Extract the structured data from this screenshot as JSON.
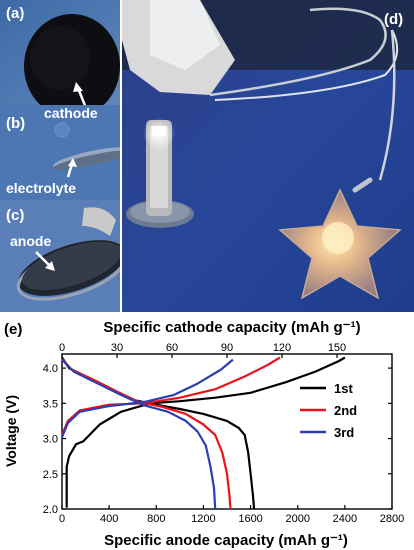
{
  "photo_panels": {
    "a": {
      "label": "(a)",
      "annotation": "cathode"
    },
    "b": {
      "label": "(b)",
      "annotation": "electrolyte"
    },
    "c": {
      "label": "(c)",
      "annotation": "anode"
    },
    "d": {
      "label": "(d)"
    }
  },
  "chart_data": {
    "type": "line",
    "panel_label": "(e)",
    "title": "",
    "xlabel_top": "Specific cathode capacity (mAh g⁻¹)",
    "xlabel_bottom": "Specific anode capacity (mAh g⁻¹)",
    "ylabel": "Voltage (V)",
    "xlim_bottom": [
      0,
      2800
    ],
    "xticks_bottom": [
      0,
      400,
      800,
      1200,
      1600,
      2000,
      2400,
      2800
    ],
    "xlim_top": [
      0,
      180
    ],
    "xticks_top": [
      0,
      30,
      60,
      90,
      120,
      150
    ],
    "ylim": [
      2.0,
      4.2
    ],
    "yticks": [
      2.0,
      2.5,
      3.0,
      3.5,
      4.0
    ],
    "legend_position": "right",
    "series": [
      {
        "name": "1st",
        "color": "#000000",
        "charge": [
          [
            40,
            2.02
          ],
          [
            40,
            2.6
          ],
          [
            60,
            2.75
          ],
          [
            120,
            2.92
          ],
          [
            180,
            2.96
          ],
          [
            320,
            3.2
          ],
          [
            500,
            3.38
          ],
          [
            750,
            3.5
          ],
          [
            1000,
            3.53
          ],
          [
            1300,
            3.58
          ],
          [
            1600,
            3.65
          ],
          [
            1900,
            3.8
          ],
          [
            2150,
            3.95
          ],
          [
            2350,
            4.1
          ],
          [
            2400,
            4.15
          ]
        ],
        "discharge": [
          [
            0,
            4.15
          ],
          [
            60,
            4.0
          ],
          [
            200,
            3.88
          ],
          [
            400,
            3.72
          ],
          [
            600,
            3.55
          ],
          [
            800,
            3.48
          ],
          [
            1000,
            3.42
          ],
          [
            1200,
            3.35
          ],
          [
            1400,
            3.25
          ],
          [
            1500,
            3.15
          ],
          [
            1550,
            3.05
          ],
          [
            1580,
            2.8
          ],
          [
            1600,
            2.5
          ],
          [
            1620,
            2.2
          ],
          [
            1630,
            2.0
          ]
        ]
      },
      {
        "name": "2nd",
        "color": "#e8141a",
        "charge": [
          [
            0,
            3.05
          ],
          [
            50,
            3.25
          ],
          [
            150,
            3.4
          ],
          [
            400,
            3.48
          ],
          [
            700,
            3.5
          ],
          [
            1000,
            3.58
          ],
          [
            1300,
            3.7
          ],
          [
            1550,
            3.88
          ],
          [
            1750,
            4.05
          ],
          [
            1850,
            4.15
          ]
        ],
        "discharge": [
          [
            0,
            4.13
          ],
          [
            80,
            3.98
          ],
          [
            250,
            3.85
          ],
          [
            450,
            3.68
          ],
          [
            650,
            3.52
          ],
          [
            850,
            3.45
          ],
          [
            1050,
            3.35
          ],
          [
            1200,
            3.2
          ],
          [
            1300,
            3.05
          ],
          [
            1360,
            2.8
          ],
          [
            1400,
            2.5
          ],
          [
            1420,
            2.2
          ],
          [
            1430,
            2.0
          ]
        ]
      },
      {
        "name": "3rd",
        "color": "#2b3fae",
        "charge": [
          [
            0,
            3.02
          ],
          [
            50,
            3.22
          ],
          [
            150,
            3.38
          ],
          [
            400,
            3.46
          ],
          [
            700,
            3.52
          ],
          [
            950,
            3.62
          ],
          [
            1150,
            3.78
          ],
          [
            1350,
            3.98
          ],
          [
            1450,
            4.12
          ]
        ],
        "discharge": [
          [
            0,
            4.12
          ],
          [
            100,
            3.95
          ],
          [
            280,
            3.8
          ],
          [
            500,
            3.62
          ],
          [
            700,
            3.47
          ],
          [
            900,
            3.38
          ],
          [
            1050,
            3.25
          ],
          [
            1150,
            3.1
          ],
          [
            1220,
            2.9
          ],
          [
            1260,
            2.6
          ],
          [
            1290,
            2.3
          ],
          [
            1300,
            2.0
          ]
        ]
      }
    ]
  }
}
